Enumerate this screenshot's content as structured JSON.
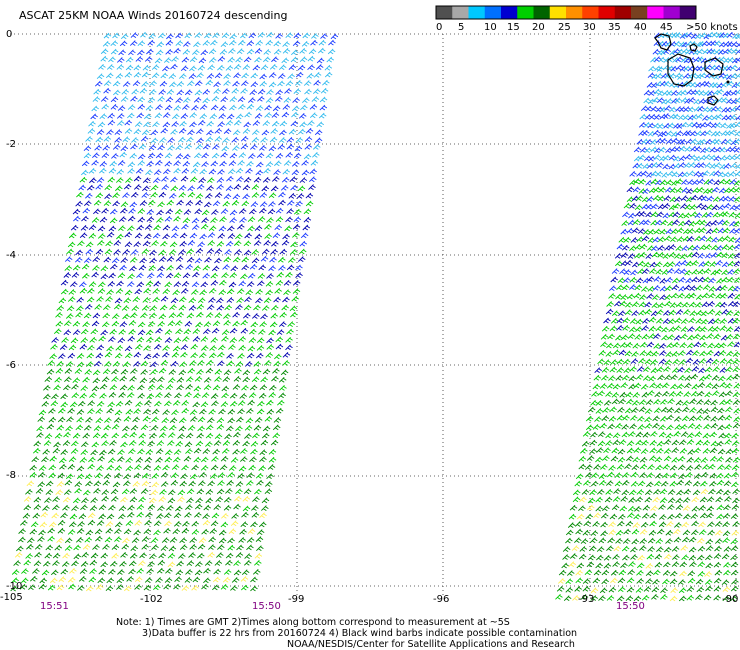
{
  "title": "ASCAT 25KM NOAA Winds 20160724 descending",
  "legend": {
    "unit": "knots",
    "bins": [
      {
        "label": "0",
        "color": "#505050"
      },
      {
        "label": "",
        "color": "#a8a8a8"
      },
      {
        "label": "5",
        "color": "#00c8ff"
      },
      {
        "label": "",
        "color": "#0070ff"
      },
      {
        "label": "10",
        "color": "#0000d0"
      },
      {
        "label": "",
        "color": "#00d000"
      },
      {
        "label": "15",
        "color": "#006400"
      },
      {
        "label": "",
        "color": "#ffe000"
      },
      {
        "label": "20",
        "color": "#ff9000"
      },
      {
        "label": "",
        "color": "#ff4000"
      },
      {
        "label": "25",
        "color": "#e00000"
      },
      {
        "label": "",
        "color": "#a00000"
      },
      {
        "label": "30",
        "color": "#784020"
      },
      {
        "label": "",
        "color": "#ff00ff"
      },
      {
        "label": "35",
        "color": "#a000d0"
      },
      {
        "label": "",
        "color": "#400070"
      }
    ],
    "tick_labels": [
      "0",
      "5",
      "10",
      "15",
      "20",
      "25",
      "30",
      "35",
      "40",
      "45",
      ">50 knots"
    ]
  },
  "axes": {
    "y_labels": [
      "0",
      "-2",
      "-4",
      "-6",
      "-8",
      "-10"
    ],
    "x_labels": [
      "-105",
      "-102",
      "-99",
      "-96",
      "-93",
      "-90"
    ]
  },
  "times": [
    "15:51",
    "15:50",
    "15:50"
  ],
  "notes": [
    "Note: 1) Times are GMT 2)Times along bottom correspond to measurement at ~5S",
    "3)Data buffer is 22 hrs from 20160724 4) Black wind barbs indicate possible contamination",
    "NOAA/NESDIS/Center for Satellite Applications and Research"
  ],
  "colors": {
    "light_blue": "#33bbee",
    "blue": "#1a3aff",
    "dark_blue": "#0000b0",
    "green": "#00cc00",
    "dark_green": "#008800",
    "yellow": "#ffee55",
    "time_label": "#800080"
  }
}
